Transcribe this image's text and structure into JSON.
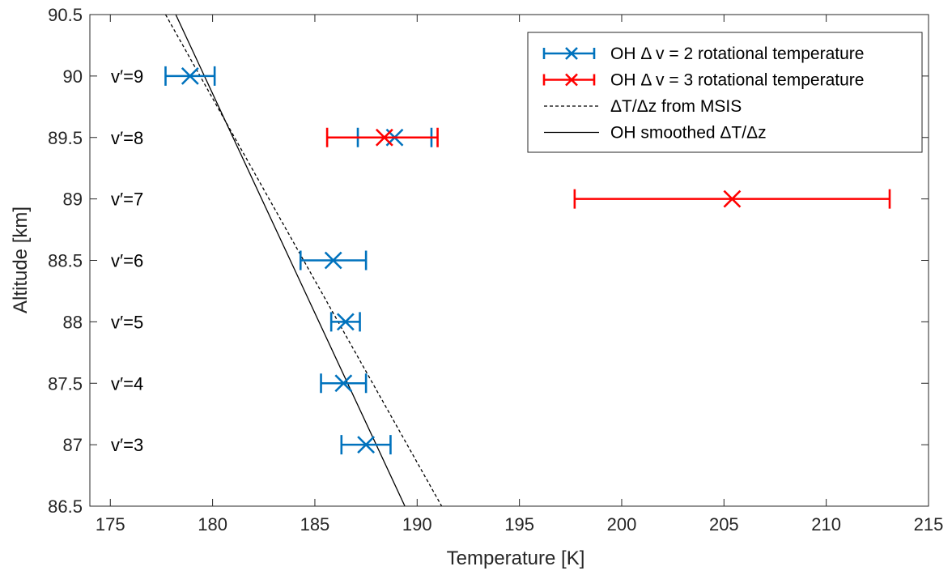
{
  "chart_data": {
    "type": "scatter",
    "title": "",
    "xlabel": "Temperature [K]",
    "ylabel": "Altitude [km]",
    "xlim": [
      174,
      215
    ],
    "ylim": [
      86.5,
      90.5
    ],
    "xticks": [
      "175",
      "180",
      "185",
      "190",
      "195",
      "200",
      "205",
      "210",
      "215"
    ],
    "yticks": [
      "86.5",
      "87",
      "87.5",
      "88",
      "88.5",
      "89",
      "89.5",
      "90",
      "90.5"
    ],
    "grid": false,
    "legend_position": "top-right",
    "level_labels": [
      {
        "text": "v′=9",
        "y": 90
      },
      {
        "text": "v′=8",
        "y": 89.5
      },
      {
        "text": "v′=7",
        "y": 89
      },
      {
        "text": "v′=6",
        "y": 88.5
      },
      {
        "text": "v′=5",
        "y": 88
      },
      {
        "text": "v′=4",
        "y": 87.5
      },
      {
        "text": "v′=3",
        "y": 87
      }
    ],
    "series": [
      {
        "name": "OH Δ v = 2 rotational temperature",
        "kind": "errorbar",
        "color": "#0072BD",
        "points": [
          {
            "x": 178.9,
            "y": 90,
            "xerr_low": 177.7,
            "xerr_high": 180.1
          },
          {
            "x": 188.9,
            "y": 89.5,
            "xerr_low": 187.1,
            "xerr_high": 190.7
          },
          {
            "x": 185.9,
            "y": 88.5,
            "xerr_low": 184.3,
            "xerr_high": 187.5
          },
          {
            "x": 186.5,
            "y": 88,
            "xerr_low": 185.8,
            "xerr_high": 187.2
          },
          {
            "x": 186.4,
            "y": 87.5,
            "xerr_low": 185.3,
            "xerr_high": 187.5
          },
          {
            "x": 187.5,
            "y": 87,
            "xerr_low": 186.3,
            "xerr_high": 188.7
          }
        ]
      },
      {
        "name": "OH Δ v = 3 rotational temperature",
        "kind": "errorbar",
        "color": "#FF0000",
        "points": [
          {
            "x": 188.4,
            "y": 89.5,
            "xerr_low": 185.6,
            "xerr_high": 191.0
          },
          {
            "x": 205.4,
            "y": 89,
            "xerr_low": 197.7,
            "xerr_high": 213.1
          }
        ]
      },
      {
        "name": "ΔT/Δz from MSIS",
        "kind": "line",
        "style": "dashed",
        "color": "#000000",
        "x": [
          177.7,
          191.2
        ],
        "y": [
          90.5,
          86.5
        ]
      },
      {
        "name": "OH smoothed ΔT/Δz",
        "kind": "line",
        "style": "solid",
        "color": "#000000",
        "x": [
          178.2,
          189.4
        ],
        "y": [
          90.5,
          86.5
        ]
      }
    ]
  }
}
